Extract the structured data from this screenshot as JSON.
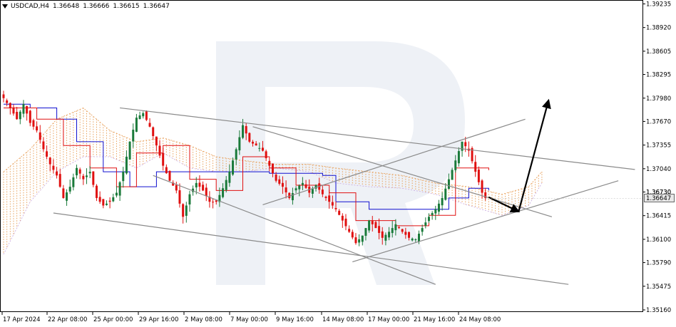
{
  "header": {
    "symbol": "USDCAD,H4",
    "open": "1.36648",
    "high": "1.36666",
    "low": "1.36615",
    "close": "1.36647"
  },
  "chart_data": {
    "type": "candlestick",
    "symbol": "USDCAD",
    "timeframe": "H4",
    "y_range": [
      1.3516,
      1.3923
    ],
    "y_ticks": [
      "1.39235",
      "1.38920",
      "1.38605",
      "1.38295",
      "1.37980",
      "1.37670",
      "1.37355",
      "1.37040",
      "1.36730",
      "1.36415",
      "1.36100",
      "1.35790",
      "1.35475",
      "1.35160"
    ],
    "x_ticks": [
      "17 Apr 2024",
      "22 Apr 08:00",
      "25 Apr 00:00",
      "29 Apr 16:00",
      "2 May 08:00",
      "7 May 00:00",
      "9 May 16:00",
      "14 May 08:00",
      "17 May 00:00",
      "21 May 16:00",
      "24 May 08:00"
    ],
    "current_price": "1.36647",
    "hidden_price_label": "1.36730",
    "price_points": [
      {
        "i": 0,
        "p": 1.3798
      },
      {
        "i": 2,
        "p": 1.3785
      },
      {
        "i": 4,
        "p": 1.377
      },
      {
        "i": 6,
        "p": 1.379
      },
      {
        "i": 8,
        "p": 1.3765
      },
      {
        "i": 10,
        "p": 1.3755
      },
      {
        "i": 12,
        "p": 1.373
      },
      {
        "i": 14,
        "p": 1.371
      },
      {
        "i": 16,
        "p": 1.3695
      },
      {
        "i": 18,
        "p": 1.3665
      },
      {
        "i": 20,
        "p": 1.368
      },
      {
        "i": 22,
        "p": 1.3705
      },
      {
        "i": 24,
        "p": 1.369
      },
      {
        "i": 26,
        "p": 1.37
      },
      {
        "i": 28,
        "p": 1.3665
      },
      {
        "i": 30,
        "p": 1.3655
      },
      {
        "i": 32,
        "p": 1.366
      },
      {
        "i": 34,
        "p": 1.3672
      },
      {
        "i": 36,
        "p": 1.37
      },
      {
        "i": 38,
        "p": 1.374
      },
      {
        "i": 40,
        "p": 1.3772
      },
      {
        "i": 42,
        "p": 1.3778
      },
      {
        "i": 44,
        "p": 1.376
      },
      {
        "i": 46,
        "p": 1.3735
      },
      {
        "i": 48,
        "p": 1.3708
      },
      {
        "i": 50,
        "p": 1.3688
      },
      {
        "i": 52,
        "p": 1.3675
      },
      {
        "i": 54,
        "p": 1.364
      },
      {
        "i": 56,
        "p": 1.367
      },
      {
        "i": 58,
        "p": 1.3685
      },
      {
        "i": 60,
        "p": 1.3675
      },
      {
        "i": 62,
        "p": 1.366
      },
      {
        "i": 64,
        "p": 1.366
      },
      {
        "i": 66,
        "p": 1.3678
      },
      {
        "i": 68,
        "p": 1.37
      },
      {
        "i": 70,
        "p": 1.373
      },
      {
        "i": 72,
        "p": 1.3762
      },
      {
        "i": 74,
        "p": 1.374
      },
      {
        "i": 76,
        "p": 1.3735
      },
      {
        "i": 78,
        "p": 1.3728
      },
      {
        "i": 80,
        "p": 1.3708
      },
      {
        "i": 82,
        "p": 1.3688
      },
      {
        "i": 84,
        "p": 1.368
      },
      {
        "i": 86,
        "p": 1.3665
      },
      {
        "i": 88,
        "p": 1.3678
      },
      {
        "i": 90,
        "p": 1.3685
      },
      {
        "i": 92,
        "p": 1.3672
      },
      {
        "i": 94,
        "p": 1.3682
      },
      {
        "i": 96,
        "p": 1.367
      },
      {
        "i": 98,
        "p": 1.366
      },
      {
        "i": 100,
        "p": 1.365
      },
      {
        "i": 102,
        "p": 1.3635
      },
      {
        "i": 104,
        "p": 1.362
      },
      {
        "i": 106,
        "p": 1.3605
      },
      {
        "i": 108,
        "p": 1.3615
      },
      {
        "i": 110,
        "p": 1.3635
      },
      {
        "i": 112,
        "p": 1.3625
      },
      {
        "i": 114,
        "p": 1.3612
      },
      {
        "i": 116,
        "p": 1.362
      },
      {
        "i": 118,
        "p": 1.363
      },
      {
        "i": 120,
        "p": 1.362
      },
      {
        "i": 122,
        "p": 1.3612
      },
      {
        "i": 124,
        "p": 1.361
      },
      {
        "i": 126,
        "p": 1.3625
      },
      {
        "i": 128,
        "p": 1.364
      },
      {
        "i": 130,
        "p": 1.365
      },
      {
        "i": 132,
        "p": 1.3665
      },
      {
        "i": 134,
        "p": 1.369
      },
      {
        "i": 136,
        "p": 1.3715
      },
      {
        "i": 138,
        "p": 1.374
      },
      {
        "i": 140,
        "p": 1.3728
      },
      {
        "i": 142,
        "p": 1.37
      },
      {
        "i": 144,
        "p": 1.3672
      },
      {
        "i": 145,
        "p": 1.3665
      }
    ],
    "tenkan_points": [
      {
        "i": 0,
        "p": 1.3785
      },
      {
        "i": 10,
        "p": 1.377
      },
      {
        "i": 18,
        "p": 1.3735
      },
      {
        "i": 26,
        "p": 1.3705
      },
      {
        "i": 34,
        "p": 1.368
      },
      {
        "i": 40,
        "p": 1.3725
      },
      {
        "i": 48,
        "p": 1.3735
      },
      {
        "i": 56,
        "p": 1.369
      },
      {
        "i": 64,
        "p": 1.3675
      },
      {
        "i": 72,
        "p": 1.372
      },
      {
        "i": 80,
        "p": 1.3705
      },
      {
        "i": 88,
        "p": 1.3682
      },
      {
        "i": 98,
        "p": 1.3672
      },
      {
        "i": 106,
        "p": 1.3635
      },
      {
        "i": 118,
        "p": 1.3628
      },
      {
        "i": 128,
        "p": 1.3642
      },
      {
        "i": 136,
        "p": 1.3705
      },
      {
        "i": 142,
        "p": 1.3705
      },
      {
        "i": 146,
        "p": 1.3702
      }
    ],
    "kijun_points": [
      {
        "i": 0,
        "p": 1.379
      },
      {
        "i": 8,
        "p": 1.3785
      },
      {
        "i": 16,
        "p": 1.377
      },
      {
        "i": 22,
        "p": 1.374
      },
      {
        "i": 30,
        "p": 1.37
      },
      {
        "i": 38,
        "p": 1.368
      },
      {
        "i": 46,
        "p": 1.37
      },
      {
        "i": 56,
        "p": 1.37
      },
      {
        "i": 68,
        "p": 1.37
      },
      {
        "i": 80,
        "p": 1.3698
      },
      {
        "i": 96,
        "p": 1.3695
      },
      {
        "i": 100,
        "p": 1.366
      },
      {
        "i": 110,
        "p": 1.365
      },
      {
        "i": 124,
        "p": 1.365
      },
      {
        "i": 134,
        "p": 1.3665
      },
      {
        "i": 140,
        "p": 1.3678
      },
      {
        "i": 146,
        "p": 1.3675
      }
    ],
    "cloud_points": [
      {
        "i": 0,
        "a": 1.37,
        "b": 1.359
      },
      {
        "i": 8,
        "a": 1.373,
        "b": 1.366
      },
      {
        "i": 16,
        "a": 1.377,
        "b": 1.37
      },
      {
        "i": 24,
        "a": 1.3785,
        "b": 1.372
      },
      {
        "i": 32,
        "a": 1.3755,
        "b": 1.372
      },
      {
        "i": 40,
        "a": 1.374,
        "b": 1.3705
      },
      {
        "i": 48,
        "a": 1.3745,
        "b": 1.3725
      },
      {
        "i": 56,
        "a": 1.3735,
        "b": 1.3705
      },
      {
        "i": 64,
        "a": 1.372,
        "b": 1.37
      },
      {
        "i": 72,
        "a": 1.3715,
        "b": 1.37
      },
      {
        "i": 82,
        "a": 1.371,
        "b": 1.3705
      },
      {
        "i": 92,
        "a": 1.371,
        "b": 1.37
      },
      {
        "i": 100,
        "a": 1.3705,
        "b": 1.3685
      },
      {
        "i": 110,
        "a": 1.37,
        "b": 1.368
      },
      {
        "i": 120,
        "a": 1.3695,
        "b": 1.3678
      },
      {
        "i": 130,
        "a": 1.3685,
        "b": 1.367
      },
      {
        "i": 140,
        "a": 1.368,
        "b": 1.3655
      },
      {
        "i": 150,
        "a": 1.367,
        "b": 1.3642
      },
      {
        "i": 158,
        "a": 1.368,
        "b": 1.3655
      },
      {
        "i": 162,
        "a": 1.37,
        "b": 1.3685
      }
    ],
    "trendlines": [
      {
        "from": {
          "i": 35,
          "p": 1.3785
        },
        "to": {
          "i": 190,
          "p": 1.3703
        }
      },
      {
        "from": {
          "i": 15,
          "p": 1.3645
        },
        "to": {
          "i": 170,
          "p": 1.355
        }
      },
      {
        "from": {
          "i": 45,
          "p": 1.3695
        },
        "to": {
          "i": 130,
          "p": 1.355
        }
      },
      {
        "from": {
          "i": 75,
          "p": 1.376
        },
        "to": {
          "i": 165,
          "p": 1.364
        }
      },
      {
        "from": {
          "i": 78,
          "p": 1.3656
        },
        "to": {
          "i": 157,
          "p": 1.377
        }
      },
      {
        "from": {
          "i": 105,
          "p": 1.358
        },
        "to": {
          "i": 185,
          "p": 1.3688
        }
      }
    ],
    "forecast_arrow": [
      {
        "i": 146,
        "p": 1.3666
      },
      {
        "i": 155,
        "p": 1.3647
      },
      {
        "i": 164,
        "p": 1.3795
      }
    ]
  },
  "watermark_icon": "broker-logo-R"
}
